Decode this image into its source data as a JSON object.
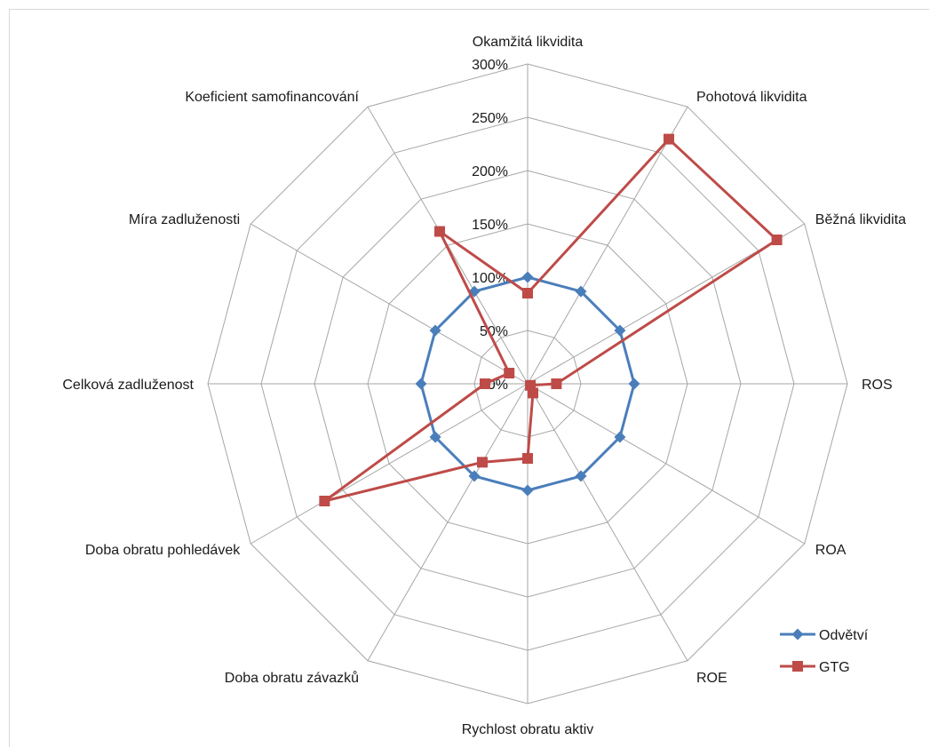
{
  "chart_data": {
    "type": "radar",
    "title": "",
    "categories": [
      "Okamžitá likvidita",
      "Pohotová likvidita",
      "Běžná likvidita",
      "ROS",
      "ROA",
      "ROE",
      "Rychlost obratu aktiv",
      "Doba obratu závazků",
      "Doba obratu pohledávek",
      "Celková zadluženost",
      "Míra zadluženosti",
      "Koeficient samofinancování"
    ],
    "rlim": [
      0,
      300
    ],
    "tick_values": [
      0,
      50,
      100,
      150,
      200,
      250,
      300
    ],
    "tick_labels": [
      "0%",
      "50%",
      "100%",
      "150%",
      "200%",
      "250%",
      "300%"
    ],
    "grid": true,
    "legend_position": "bottom-right",
    "series": [
      {
        "name": "Odvětví",
        "color": "#4a7ebb",
        "marker": "diamond",
        "values": [
          100,
          100,
          100,
          100,
          100,
          100,
          100,
          100,
          100,
          100,
          100,
          100
        ]
      },
      {
        "name": "GTG",
        "color": "#be4b48",
        "marker": "square",
        "values": [
          85,
          265,
          270,
          27,
          3,
          10,
          70,
          85,
          220,
          40,
          20,
          165
        ]
      }
    ]
  }
}
